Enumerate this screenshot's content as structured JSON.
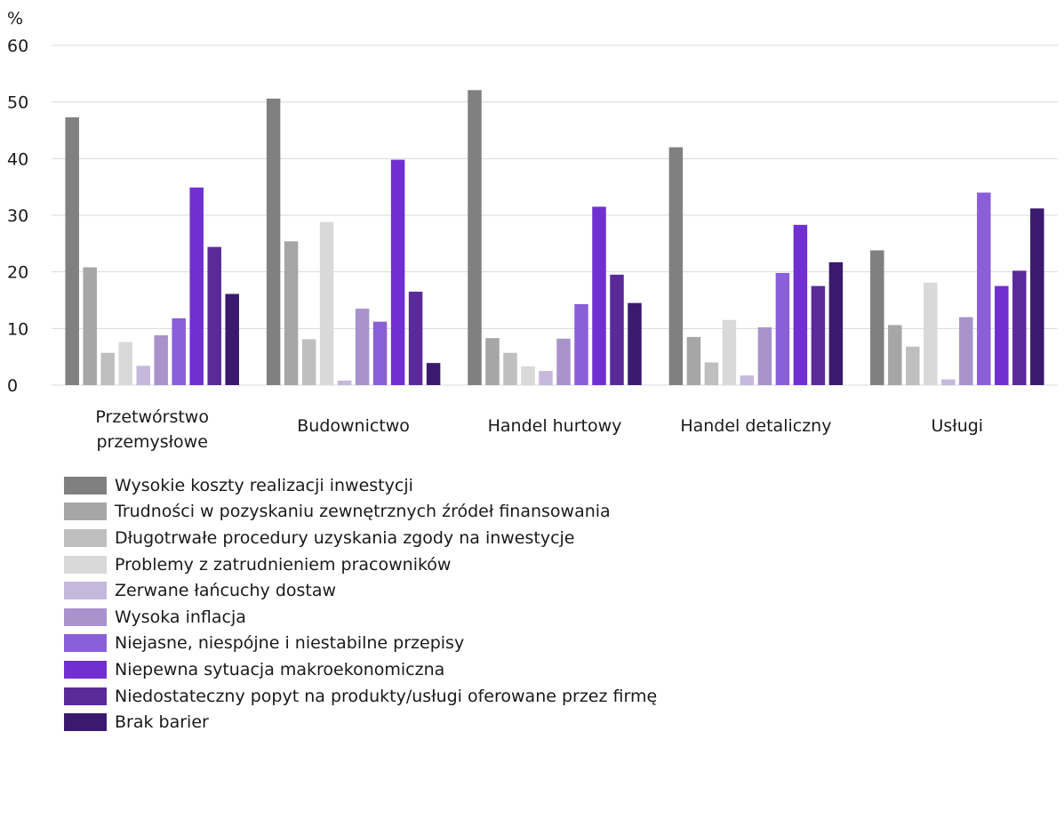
{
  "chart_data": {
    "type": "bar",
    "ylabel": "%",
    "ylim": [
      0,
      60
    ],
    "yticks": [
      "0",
      "10",
      "20",
      "30",
      "40",
      "50",
      "60"
    ],
    "grid": true,
    "legend_position": "bottom",
    "categories": [
      [
        "Przetwórstwo",
        "przemysłowe"
      ],
      [
        "Budownictwo"
      ],
      [
        "Handel hurtowy"
      ],
      [
        "Handel detaliczny"
      ],
      [
        "Usługi"
      ]
    ],
    "series": [
      {
        "name": "Wysokie koszty realizacji inwestycji",
        "color": "#808080",
        "values": [
          47.3,
          50.6,
          52.1,
          42.0,
          23.8
        ]
      },
      {
        "name": "Trudności w pozyskaniu zewnętrznych źródeł finansowania",
        "color": "#a6a6a6",
        "values": [
          20.8,
          25.4,
          8.3,
          8.5,
          10.6
        ]
      },
      {
        "name": "Długotrwałe procedury uzyskania zgody na inwestycje",
        "color": "#bfbfbf",
        "values": [
          5.7,
          8.1,
          5.7,
          4.0,
          6.8
        ]
      },
      {
        "name": "Problemy z zatrudnieniem pracowników",
        "color": "#d9d9d9",
        "values": [
          7.6,
          28.8,
          3.3,
          11.5,
          18.1
        ]
      },
      {
        "name": "Zerwane łańcuchy dostaw",
        "color": "#c6b7dc",
        "values": [
          3.4,
          0.8,
          2.5,
          1.7,
          1.0
        ]
      },
      {
        "name": "Wysoka inflacja",
        "color": "#a893cc",
        "values": [
          8.8,
          13.5,
          8.2,
          10.2,
          12.0
        ]
      },
      {
        "name": "Niejasne, niespójne i niestabilne przepisy",
        "color": "#8a5fd8",
        "values": [
          11.8,
          11.2,
          14.3,
          19.8,
          34.0
        ]
      },
      {
        "name": "Niepewna sytuacja makroekonomiczna",
        "color": "#6f2fd1",
        "values": [
          34.9,
          39.8,
          31.5,
          28.3,
          17.5
        ]
      },
      {
        "name": "Niedostateczny popyt na produkty/usługi oferowane przez firmę",
        "color": "#5a2a99",
        "values": [
          24.4,
          16.5,
          19.5,
          17.5,
          20.2
        ]
      },
      {
        "name": "Brak barier",
        "color": "#3a1a6e",
        "values": [
          16.1,
          3.9,
          14.5,
          21.7,
          31.2
        ]
      }
    ]
  }
}
